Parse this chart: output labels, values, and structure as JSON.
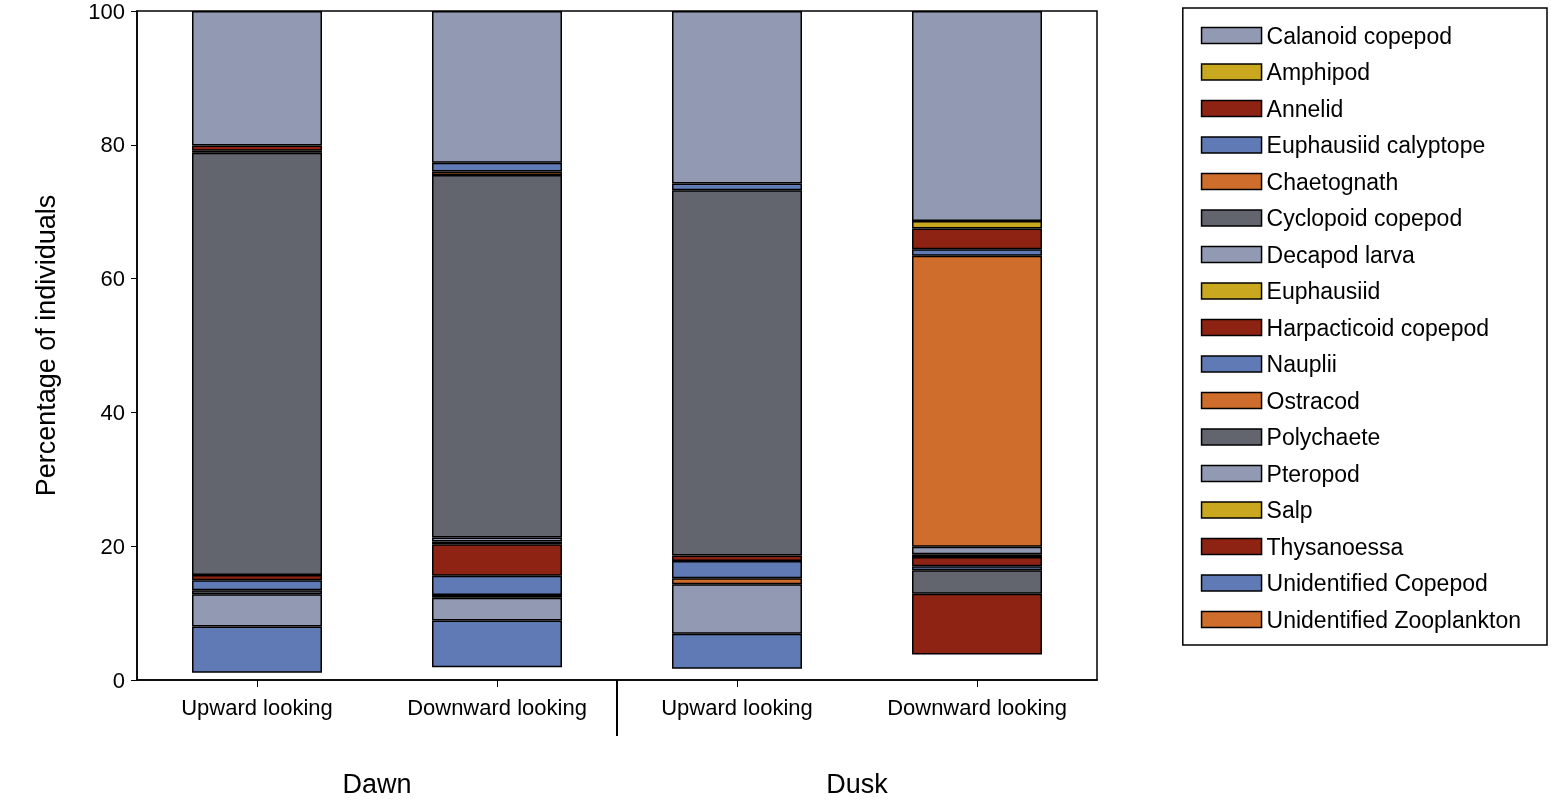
{
  "chart_data": {
    "type": "bar",
    "ylabel": "Percentage of individuals",
    "categories": [
      "Upward looking",
      "Downward looking",
      "Upward looking",
      "Downward looking"
    ],
    "annotations": [
      "Dawn",
      "Dusk"
    ],
    "ylim": [
      0,
      100
    ],
    "yticks": [
      0,
      20,
      40,
      60,
      80,
      100
    ],
    "grid": false,
    "legend": "right",
    "series": [
      {
        "name": "Unidentified Zooplankton",
        "color": "#cf6e2c",
        "values": [
          null,
          null,
          null,
          null
        ],
        "base": [
          null,
          null,
          null,
          null
        ]
      },
      {
        "name": "Unidentified Copepod",
        "color": "#5f7ab4",
        "values": [
          6.9,
          7.0,
          5.2,
          null
        ],
        "base": [
          1.1,
          1.9,
          1.7,
          null
        ]
      },
      {
        "name": "Thysanoessa",
        "color": "#8f2313",
        "values": [
          null,
          null,
          null,
          9.1
        ],
        "base": [
          null,
          null,
          null,
          3.8
        ]
      },
      {
        "name": "Salp",
        "color": "#c9a820",
        "values": [
          null,
          null,
          null,
          null
        ],
        "base": [
          null,
          null,
          null,
          null
        ]
      },
      {
        "name": "Pteropod",
        "color": "#9299b2",
        "values": [
          4.8,
          3.4,
          7.4,
          null
        ],
        "base": [
          8.0,
          8.9,
          6.9,
          null
        ]
      },
      {
        "name": "Polychaete",
        "color": "#62656e",
        "values": [
          0.6,
          0.4,
          null,
          3.5
        ],
        "base": [
          12.8,
          12.3,
          null,
          12.9
        ]
      },
      {
        "name": "Ostracod",
        "color": "#cf6e2c",
        "values": [
          null,
          null,
          0.9,
          null
        ],
        "base": [
          null,
          null,
          14.3,
          null
        ]
      },
      {
        "name": "Nauplii",
        "color": "#5f7ab4",
        "values": [
          1.5,
          2.9,
          2.6,
          0.6
        ],
        "base": [
          13.4,
          12.7,
          15.2,
          16.4
        ]
      },
      {
        "name": "Harpacticoid copepod",
        "color": "#8f2313",
        "values": [
          0.8,
          4.7,
          0.8,
          1.4
        ],
        "base": [
          14.9,
          15.6,
          17.8,
          17.0
        ]
      },
      {
        "name": "Euphausiid",
        "color": "#c9a820",
        "values": [
          null,
          0.4,
          null,
          0.4
        ],
        "base": [
          null,
          20.3,
          null,
          18.4
        ]
      },
      {
        "name": "Decapod larva",
        "color": "#9299b2",
        "values": [
          null,
          0.6,
          null,
          1.1
        ],
        "base": [
          null,
          20.7,
          null,
          18.8
        ]
      },
      {
        "name": "Cyclopoid copepod",
        "color": "#62656e",
        "values": [
          63.1,
          54.2,
          54.6,
          null
        ],
        "base": [
          15.7,
          21.3,
          18.6,
          null
        ]
      },
      {
        "name": "Chaetognath",
        "color": "#cf6e2c",
        "values": [
          0.3,
          0.5,
          null,
          43.5
        ],
        "base": [
          78.8,
          75.5,
          null,
          19.9
        ]
      },
      {
        "name": "Euphausiid calyptope",
        "color": "#5f7ab4",
        "values": [
          null,
          1.3,
          1.0,
          1.0
        ],
        "base": [
          null,
          76.0,
          73.2,
          63.4
        ]
      },
      {
        "name": "Annelid",
        "color": "#8f2313",
        "values": [
          0.8,
          null,
          null,
          3.1
        ],
        "base": [
          79.1,
          null,
          null,
          64.4
        ]
      },
      {
        "name": "Amphipod",
        "color": "#c9a820",
        "values": [
          null,
          null,
          null,
          1.1
        ],
        "base": [
          null,
          null,
          null,
          67.5
        ]
      },
      {
        "name": "Calanoid copepod",
        "color": "#9299b2",
        "values": [
          20.1,
          22.7,
          25.8,
          31.4
        ],
        "base": [
          79.9,
          77.3,
          74.2,
          68.6
        ]
      }
    ]
  }
}
